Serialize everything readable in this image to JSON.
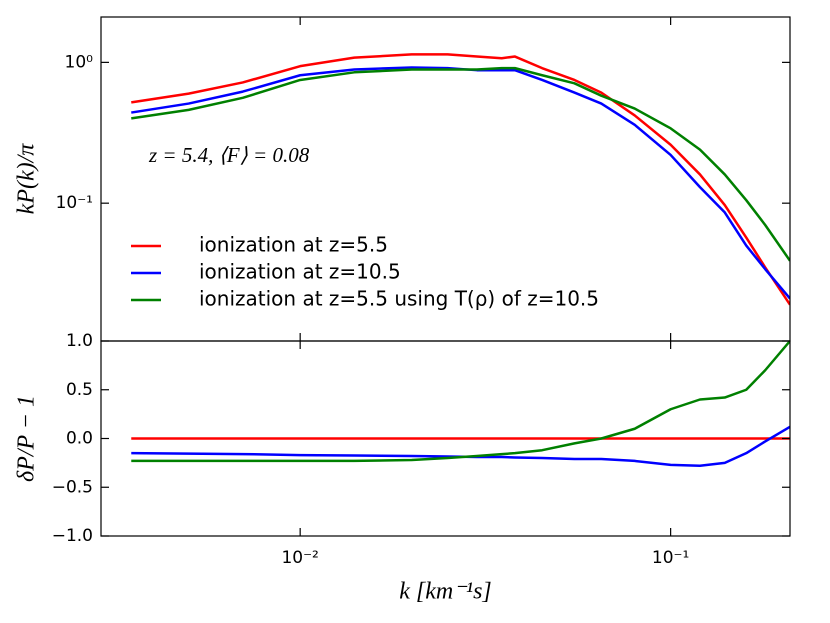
{
  "chart_data": [
    {
      "type": "line",
      "ylabel": "kP(k)/π",
      "annotation": "z = 5.4,  ⟨F⟩ = 0.08",
      "xlog": true,
      "ylog": true,
      "xlim": [
        0.0029,
        0.21
      ],
      "ylim": [
        0.0105,
        2.1
      ],
      "yticks": [
        {
          "value": 1,
          "label": "10⁰"
        },
        {
          "value": 0.1,
          "label": "10⁻¹"
        }
      ],
      "legend": "lower left",
      "x": [
        0.0035,
        0.005,
        0.007,
        0.01,
        0.014,
        0.02,
        0.025,
        0.03,
        0.035,
        0.038,
        0.045,
        0.055,
        0.065,
        0.08,
        0.1,
        0.12,
        0.14,
        0.16,
        0.18,
        0.21
      ],
      "series": [
        {
          "name": "ionization at z=5.5",
          "color": "#ff0000",
          "values": [
            0.52,
            0.6,
            0.72,
            0.94,
            1.08,
            1.14,
            1.14,
            1.1,
            1.07,
            1.1,
            0.91,
            0.75,
            0.61,
            0.42,
            0.26,
            0.16,
            0.097,
            0.057,
            0.035,
            0.019
          ]
        },
        {
          "name": "ionization at z=10.5",
          "color": "#0000ff",
          "values": [
            0.44,
            0.51,
            0.62,
            0.81,
            0.89,
            0.92,
            0.91,
            0.88,
            0.88,
            0.88,
            0.75,
            0.61,
            0.51,
            0.36,
            0.22,
            0.13,
            0.086,
            0.05,
            0.034,
            0.021
          ]
        },
        {
          "name": "ionization at z=5.5 using T(ρ) of z=10.5",
          "color": "#008000",
          "values": [
            0.4,
            0.46,
            0.56,
            0.75,
            0.85,
            0.89,
            0.89,
            0.89,
            0.91,
            0.91,
            0.81,
            0.71,
            0.58,
            0.47,
            0.34,
            0.24,
            0.16,
            0.105,
            0.07,
            0.039
          ]
        }
      ]
    },
    {
      "type": "line",
      "xlabel": "k [km⁻¹s]",
      "ylabel": "δP/P − 1",
      "xlog": true,
      "ylog": false,
      "xlim": [
        0.0029,
        0.21
      ],
      "ylim": [
        -1.0,
        1.0
      ],
      "xticks": [
        {
          "value": 0.01,
          "label": "10⁻²"
        },
        {
          "value": 0.1,
          "label": "10⁻¹"
        }
      ],
      "yticks": [
        {
          "value": -1.0,
          "label": "−1.0"
        },
        {
          "value": -0.5,
          "label": "−0.5"
        },
        {
          "value": 0.0,
          "label": "0.0"
        },
        {
          "value": 0.5,
          "label": "0.5"
        },
        {
          "value": 1.0,
          "label": "1.0"
        }
      ],
      "x": [
        0.0035,
        0.005,
        0.007,
        0.01,
        0.014,
        0.02,
        0.025,
        0.03,
        0.035,
        0.038,
        0.045,
        0.055,
        0.065,
        0.08,
        0.1,
        0.12,
        0.14,
        0.16,
        0.18,
        0.21
      ],
      "series": [
        {
          "name": "ionization at z=5.5",
          "color": "#ff0000",
          "values": [
            0,
            0,
            0,
            0,
            0,
            0,
            0,
            0,
            0,
            0,
            0,
            0,
            0,
            0,
            0,
            0,
            0,
            0,
            0,
            0
          ]
        },
        {
          "name": "ionization at z=10.5",
          "color": "#0000ff",
          "values": [
            -0.15,
            -0.155,
            -0.16,
            -0.17,
            -0.175,
            -0.18,
            -0.185,
            -0.19,
            -0.19,
            -0.195,
            -0.2,
            -0.21,
            -0.21,
            -0.23,
            -0.27,
            -0.28,
            -0.25,
            -0.15,
            -0.03,
            0.12
          ]
        },
        {
          "name": "ionization at z=5.5 using T(ρ) of z=10.5",
          "color": "#008000",
          "values": [
            -0.23,
            -0.23,
            -0.23,
            -0.23,
            -0.23,
            -0.22,
            -0.2,
            -0.18,
            -0.16,
            -0.15,
            -0.12,
            -0.05,
            0.0,
            0.1,
            0.3,
            0.4,
            0.42,
            0.5,
            0.7,
            1.0
          ]
        }
      ]
    }
  ]
}
